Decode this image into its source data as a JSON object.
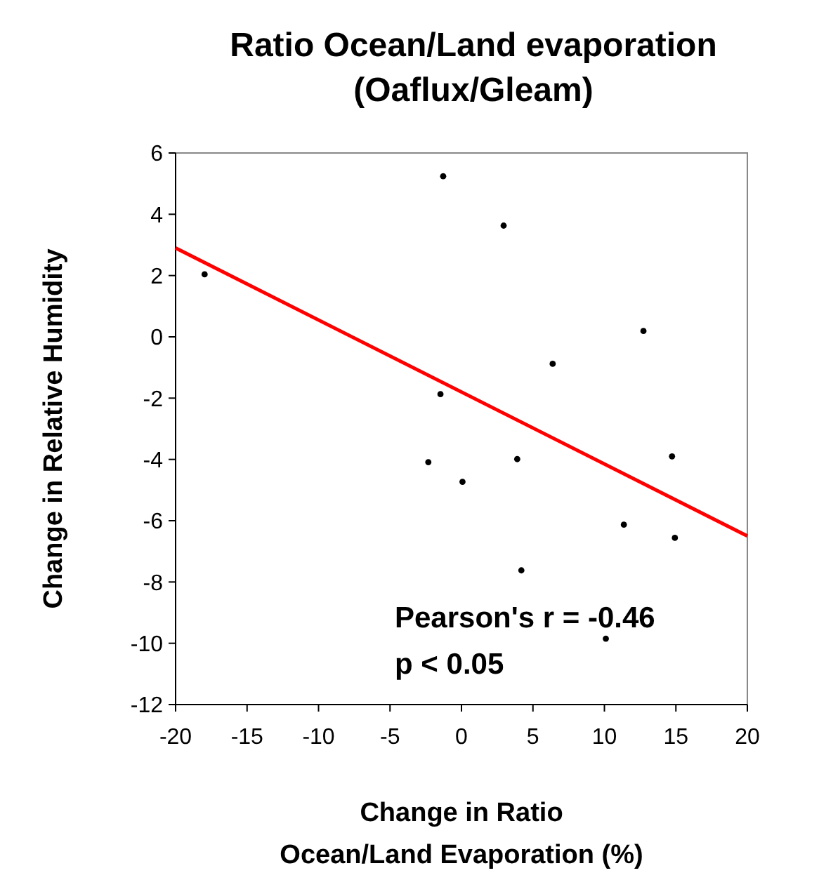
{
  "chart_data": {
    "type": "scatter",
    "title": "Ratio Ocean/Land evaporation\n(Oaflux/Gleam)",
    "xlabel": "Change in Ratio\nOcean/Land Evaporation (%)",
    "ylabel": "Change in Relative Humidity",
    "series": [
      {
        "color": "#000000",
        "marker": "circle",
        "x": [
          -17.97,
          -1.28,
          2.95,
          12.73,
          6.38,
          -1.47,
          -2.32,
          0.07,
          3.9,
          14.73,
          11.36,
          14.93,
          4.19,
          10.1
        ],
        "values": [
          2.04,
          5.24,
          3.63,
          0.19,
          -0.88,
          -1.87,
          -4.09,
          -4.73,
          -3.99,
          -3.9,
          -6.13,
          -6.56,
          -7.62,
          -9.85
        ]
      },
      {
        "type": "line",
        "color": "#ff0000",
        "x": [
          -20,
          20
        ],
        "values": [
          2.9,
          -6.5
        ]
      }
    ],
    "xlim": [
      -20,
      20
    ],
    "xticks": [
      -20,
      -15,
      -10,
      -5,
      0,
      5,
      10,
      15,
      20
    ],
    "ylim": [
      -12,
      6
    ],
    "yticks": [
      -12,
      -10,
      -8,
      -6,
      -4,
      -2,
      0,
      2,
      4,
      6
    ],
    "annotations": [
      "Pearson's r = -0.46",
      "p < 0.05"
    ],
    "grid": false
  }
}
